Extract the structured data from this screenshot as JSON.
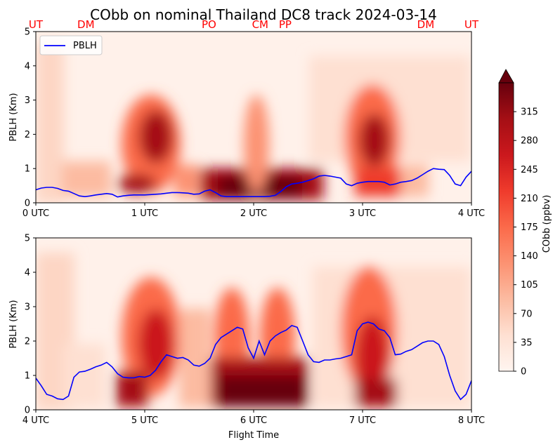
{
  "title": "CObb on nominal Thailand DC8 track 2024-03-14",
  "colors": {
    "pblh_line": "#0000ff",
    "site_labels": "#ff0000",
    "colormap": "Reds"
  },
  "chart_data": [
    {
      "type": "heatmap",
      "panel": "top",
      "ylabel": "PBLH (Km)",
      "xlabel": "",
      "ylim": [
        0,
        5
      ],
      "yticks": [
        0,
        1,
        2,
        3,
        4,
        5
      ],
      "xlim": [
        0,
        4
      ],
      "xticks": [
        0,
        1,
        2,
        3,
        4
      ],
      "xtick_labels": [
        "0 UTC",
        "1 UTC",
        "2 UTC",
        "3 UTC",
        "4 UTC"
      ],
      "legend": {
        "entries": [
          "PBLH"
        ],
        "position": "upper-left"
      },
      "site_labels": [
        {
          "label": "UT",
          "x": 0.0
        },
        {
          "label": "DM",
          "x": 0.46
        },
        {
          "label": "PO",
          "x": 1.59
        },
        {
          "label": "CM",
          "x": 2.06
        },
        {
          "label": "PP",
          "x": 2.29
        },
        {
          "label": "DM",
          "x": 3.58
        },
        {
          "label": "UT",
          "x": 4.0
        }
      ],
      "series": [
        {
          "name": "PBLH",
          "x": [
            0,
            0.05,
            0.1,
            0.15,
            0.2,
            0.25,
            0.3,
            0.35,
            0.4,
            0.45,
            0.5,
            0.55,
            0.6,
            0.65,
            0.7,
            0.75,
            0.8,
            0.85,
            0.9,
            0.95,
            1.0,
            1.05,
            1.1,
            1.15,
            1.2,
            1.25,
            1.3,
            1.35,
            1.4,
            1.45,
            1.5,
            1.55,
            1.6,
            1.65,
            1.7,
            1.75,
            1.8,
            1.85,
            1.9,
            1.95,
            2.0,
            2.05,
            2.1,
            2.15,
            2.2,
            2.25,
            2.3,
            2.35,
            2.4,
            2.45,
            2.5,
            2.55,
            2.6,
            2.65,
            2.7,
            2.75,
            2.8,
            2.85,
            2.9,
            2.95,
            3.0,
            3.05,
            3.1,
            3.15,
            3.2,
            3.25,
            3.3,
            3.35,
            3.4,
            3.45,
            3.5,
            3.55,
            3.6,
            3.65,
            3.7,
            3.75,
            3.8,
            3.85,
            3.9,
            3.95,
            4.0
          ],
          "y": [
            0.38,
            0.43,
            0.45,
            0.45,
            0.42,
            0.36,
            0.34,
            0.27,
            0.2,
            0.18,
            0.2,
            0.23,
            0.25,
            0.27,
            0.25,
            0.17,
            0.2,
            0.22,
            0.23,
            0.23,
            0.23,
            0.24,
            0.25,
            0.26,
            0.28,
            0.3,
            0.3,
            0.29,
            0.28,
            0.25,
            0.26,
            0.34,
            0.38,
            0.3,
            0.2,
            0.18,
            0.18,
            0.18,
            0.18,
            0.18,
            0.18,
            0.18,
            0.18,
            0.19,
            0.22,
            0.33,
            0.47,
            0.55,
            0.57,
            0.6,
            0.65,
            0.7,
            0.78,
            0.8,
            0.78,
            0.75,
            0.72,
            0.55,
            0.5,
            0.57,
            0.6,
            0.62,
            0.62,
            0.62,
            0.6,
            0.52,
            0.55,
            0.6,
            0.62,
            0.65,
            0.72,
            0.82,
            0.92,
            1.0,
            0.98,
            0.97,
            0.8,
            0.55,
            0.5,
            0.75,
            0.92
          ]
        }
      ]
    },
    {
      "type": "heatmap",
      "panel": "bottom",
      "ylabel": "PBLH (Km)",
      "xlabel": "Flight Time",
      "ylim": [
        0,
        5
      ],
      "yticks": [
        0,
        1,
        2,
        3,
        4,
        5
      ],
      "xlim": [
        4,
        8
      ],
      "xticks": [
        4,
        5,
        6,
        7,
        8
      ],
      "xtick_labels": [
        "4 UTC",
        "5 UTC",
        "6 UTC",
        "7 UTC",
        "8 UTC"
      ],
      "series": [
        {
          "name": "PBLH",
          "x": [
            4.0,
            4.05,
            4.1,
            4.15,
            4.2,
            4.25,
            4.3,
            4.35,
            4.4,
            4.45,
            4.5,
            4.55,
            4.6,
            4.65,
            4.7,
            4.75,
            4.8,
            4.85,
            4.9,
            4.95,
            5.0,
            5.05,
            5.1,
            5.15,
            5.2,
            5.25,
            5.3,
            5.35,
            5.4,
            5.45,
            5.5,
            5.55,
            5.6,
            5.65,
            5.7,
            5.75,
            5.8,
            5.85,
            5.9,
            5.95,
            6.0,
            6.05,
            6.1,
            6.15,
            6.2,
            6.25,
            6.3,
            6.35,
            6.4,
            6.45,
            6.5,
            6.55,
            6.6,
            6.65,
            6.7,
            6.75,
            6.8,
            6.85,
            6.9,
            6.95,
            7.0,
            7.05,
            7.1,
            7.15,
            7.2,
            7.25,
            7.3,
            7.35,
            7.4,
            7.45,
            7.5,
            7.55,
            7.6,
            7.65,
            7.7,
            7.75,
            7.8,
            7.85,
            7.9,
            7.95,
            8.0
          ],
          "y": [
            0.92,
            0.7,
            0.45,
            0.4,
            0.32,
            0.3,
            0.4,
            0.95,
            1.1,
            1.12,
            1.18,
            1.25,
            1.3,
            1.38,
            1.25,
            1.05,
            0.95,
            0.93,
            0.93,
            0.97,
            0.95,
            1.0,
            1.15,
            1.4,
            1.6,
            1.55,
            1.5,
            1.52,
            1.45,
            1.3,
            1.27,
            1.35,
            1.5,
            1.9,
            2.1,
            2.2,
            2.3,
            2.4,
            2.35,
            1.8,
            1.5,
            2.0,
            1.6,
            2.0,
            2.15,
            2.25,
            2.32,
            2.45,
            2.4,
            2.0,
            1.6,
            1.4,
            1.38,
            1.45,
            1.45,
            1.48,
            1.5,
            1.55,
            1.6,
            2.3,
            2.5,
            2.55,
            2.5,
            2.35,
            2.3,
            2.1,
            1.6,
            1.62,
            1.7,
            1.75,
            1.85,
            1.95,
            2.0,
            2.0,
            1.9,
            1.55,
            1.0,
            0.55,
            0.3,
            0.45,
            0.85
          ]
        }
      ]
    },
    {
      "type": "colorbar",
      "label": "CObb (ppbv)",
      "ticks": [
        0,
        35,
        70,
        105,
        140,
        175,
        210,
        245,
        280,
        315
      ],
      "range": [
        0,
        350
      ],
      "extend": "max",
      "cmap": "Reds"
    }
  ]
}
